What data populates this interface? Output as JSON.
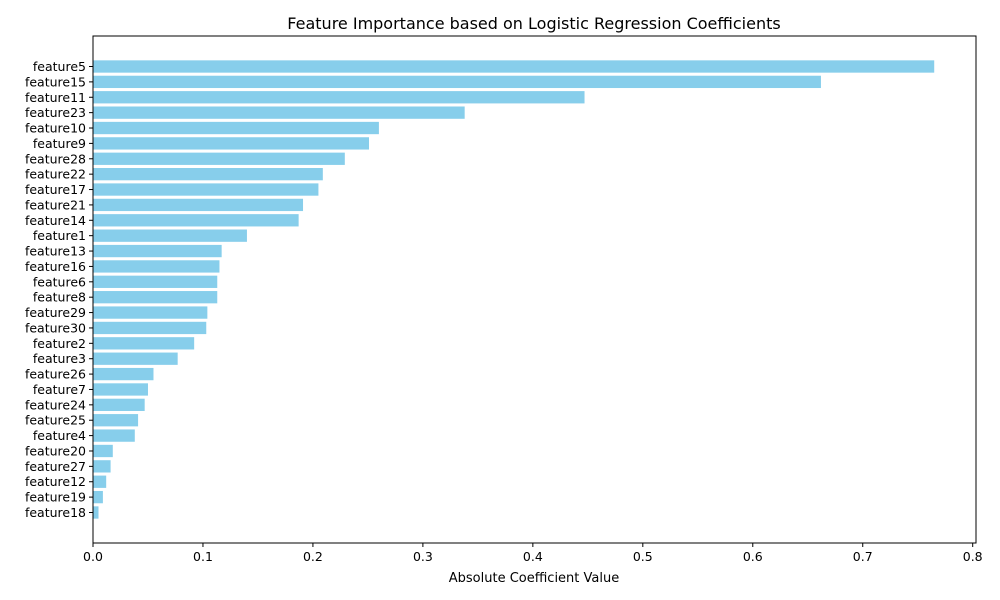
{
  "chart_data": {
    "type": "bar",
    "orientation": "horizontal",
    "title": "Feature Importance based on Logistic Regression Coefficients",
    "xlabel": "Absolute Coefficient Value",
    "ylabel": "",
    "xlim": [
      0,
      0.803
    ],
    "xticks": [
      0.0,
      0.1,
      0.2,
      0.3,
      0.4,
      0.5,
      0.6,
      0.7,
      0.8
    ],
    "xtick_labels": [
      "0.0",
      "0.1",
      "0.2",
      "0.3",
      "0.4",
      "0.5",
      "0.6",
      "0.7",
      "0.8"
    ],
    "grid": false,
    "bar_color": "#87ceeb",
    "categories": [
      "feature5",
      "feature15",
      "feature11",
      "feature23",
      "feature10",
      "feature9",
      "feature28",
      "feature22",
      "feature17",
      "feature21",
      "feature14",
      "feature1",
      "feature13",
      "feature16",
      "feature6",
      "feature8",
      "feature29",
      "feature30",
      "feature2",
      "feature3",
      "feature26",
      "feature7",
      "feature24",
      "feature25",
      "feature4",
      "feature20",
      "feature27",
      "feature12",
      "feature19",
      "feature18"
    ],
    "values": [
      0.765,
      0.662,
      0.447,
      0.338,
      0.26,
      0.251,
      0.229,
      0.209,
      0.205,
      0.191,
      0.187,
      0.14,
      0.117,
      0.115,
      0.113,
      0.113,
      0.104,
      0.103,
      0.092,
      0.077,
      0.055,
      0.05,
      0.047,
      0.041,
      0.038,
      0.018,
      0.016,
      0.012,
      0.009,
      0.005
    ]
  }
}
